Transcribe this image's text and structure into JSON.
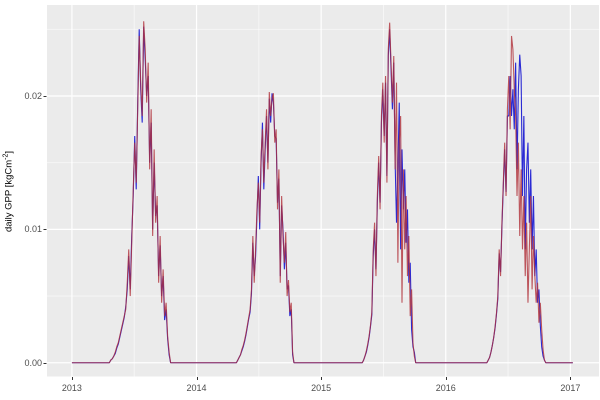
{
  "title": "",
  "chart_data": {
    "type": "line",
    "title": "",
    "xlabel": "",
    "ylabel": "daily GPP [kgCm^-2]",
    "ylabel_parts": {
      "prefix": "daily GPP [kgCm",
      "sup": "-2",
      "suffix": "]"
    },
    "legend": "none",
    "grid": "major and minor, white on gray panel",
    "panel_bg": "#EBEBEB",
    "grid_major_color": "#FFFFFF",
    "grid_minor_color": "rgba(255,255,255,0.6)",
    "tick_mark_color": "#333333",
    "tick_label_color": "#4D4D4D",
    "x_domain": [
      2012.8,
      2017.23
    ],
    "y_domain": [
      -0.00103,
      0.02682
    ],
    "x_ticks": {
      "values": [
        2013,
        2014,
        2015,
        2016,
        2017
      ],
      "labels": [
        "2013",
        "2014",
        "2015",
        "2016",
        "2017"
      ]
    },
    "y_ticks": {
      "values": [
        0,
        0.01,
        0.02
      ],
      "labels": [
        "0.00",
        "0.01",
        "0.02"
      ]
    },
    "y_value_scale": 0.0001,
    "series": [
      {
        "name": "blue",
        "color": "#2A2AD4",
        "alpha": 1,
        "segments": [
          {
            "start": 2013.0,
            "step": 0.3,
            "values": [
              0,
              0
            ]
          },
          {
            "start": 2013.3,
            "step": 0.012,
            "values": [
              0,
              2,
              3,
              5,
              7,
              11,
              14,
              19,
              24,
              29,
              34,
              42,
              55,
              80,
              55,
              95,
              125,
              170,
              130,
              195,
              250,
              205,
              180,
              252,
              228,
              200,
              215,
              150,
              180,
              100,
              150,
              110,
              118,
              65,
              88,
              50,
              65,
              32,
              40,
              18,
              6,
              0
            ]
          },
          {
            "start": 2013.792,
            "step": 0.528,
            "values": [
              0,
              0
            ]
          },
          {
            "start": 2014.32,
            "step": 0.011,
            "values": [
              0,
              2,
              4,
              6,
              9,
              12,
              16,
              21,
              27,
              33,
              38,
              52,
              90,
              65,
              80,
              110,
              140,
              100,
              150,
              180,
              130,
              160,
              185,
              150,
              198,
              180,
              202,
              195,
              170,
              168,
              120,
              138,
              65,
              118,
              100,
              70,
              90,
              55,
              58,
              35,
              40,
              6,
              0
            ]
          },
          {
            "start": 2014.782,
            "step": 0.548,
            "values": [
              0,
              0
            ]
          },
          {
            "start": 2015.33,
            "step": 0.011,
            "values": [
              0,
              2,
              5,
              8,
              13,
              19,
              27,
              36,
              80,
              100,
              70,
              120,
              150,
              120,
              180,
              205,
              170,
              210,
              140,
              230,
              250,
              220,
              190,
              225,
              150,
              105,
              145,
              195,
              85,
              160,
              115,
              145,
              90,
              115,
              60,
              75,
              25,
              12,
              8,
              0
            ]
          },
          {
            "start": 2015.759,
            "step": 0.571,
            "values": [
              0,
              0
            ]
          },
          {
            "start": 2016.33,
            "step": 0.011,
            "values": [
              0,
              2,
              4,
              8,
              13,
              19,
              26,
              36,
              48,
              82,
              68,
              102,
              132,
              160,
              128,
              185,
              185,
              215,
              185,
              205,
              175,
              225,
              145,
              205,
              231,
              215,
              125,
              185,
              85,
              145,
              165,
              105,
              145,
              85,
              125,
              65,
              85,
              45,
              55,
              28,
              12,
              5,
              2,
              0
            ]
          },
          {
            "start": 2016.803,
            "step": 0.217,
            "values": [
              0,
              0
            ]
          }
        ]
      },
      {
        "name": "red",
        "color": "#B03038",
        "alpha": 0.8,
        "segments": [
          {
            "start": 2013.0,
            "step": 0.3,
            "values": [
              0,
              0
            ]
          },
          {
            "start": 2013.3,
            "step": 0.012,
            "values": [
              0,
              2,
              3,
              5,
              8,
              12,
              15,
              20,
              25,
              30,
              35,
              40,
              60,
              85,
              50,
              90,
              130,
              165,
              135,
              190,
              245,
              210,
              185,
              256,
              235,
              195,
              225,
              145,
              190,
              95,
              160,
              105,
              125,
              60,
              95,
              45,
              70,
              35,
              45,
              20,
              8,
              0
            ]
          },
          {
            "start": 2013.792,
            "step": 0.528,
            "values": [
              0,
              0
            ]
          },
          {
            "start": 2014.32,
            "step": 0.011,
            "values": [
              0,
              2,
              4,
              6,
              10,
              13,
              17,
              22,
              28,
              34,
              40,
              55,
              95,
              60,
              85,
              115,
              135,
              105,
              155,
              175,
              135,
              165,
              190,
              145,
              203,
              185,
              198,
              202,
              165,
              175,
              115,
              145,
              60,
              125,
              95,
              75,
              98,
              50,
              62,
              38,
              45,
              8,
              0
            ]
          },
          {
            "start": 2014.782,
            "step": 0.548,
            "values": [
              0,
              0
            ]
          },
          {
            "start": 2015.33,
            "step": 0.011,
            "values": [
              0,
              2,
              5,
              9,
              14,
              20,
              28,
              38,
              85,
              105,
              65,
              125,
              155,
              115,
              185,
              210,
              165,
              215,
              135,
              235,
              255,
              225,
              195,
              230,
              145,
              210,
              75,
              165,
              185,
              45,
              145,
              85,
              125,
              65,
              95,
              35,
              55,
              15,
              5,
              0
            ]
          },
          {
            "start": 2015.759,
            "step": 0.571,
            "values": [
              0,
              0
            ]
          },
          {
            "start": 2016.33,
            "step": 0.011,
            "values": [
              0,
              2,
              4,
              8,
              13,
              19,
              27,
              37,
              50,
              85,
              65,
              105,
              135,
              165,
              125,
              190,
              215,
              175,
              245,
              235,
              205,
              185,
              125,
              165,
              95,
              145,
              85,
              125,
              65,
              105,
              45,
              85,
              125,
              55,
              95,
              65,
              45,
              60,
              30,
              45,
              25,
              10,
              2,
              0
            ]
          },
          {
            "start": 2016.803,
            "step": 0.217,
            "values": [
              0,
              0
            ]
          }
        ]
      }
    ]
  }
}
